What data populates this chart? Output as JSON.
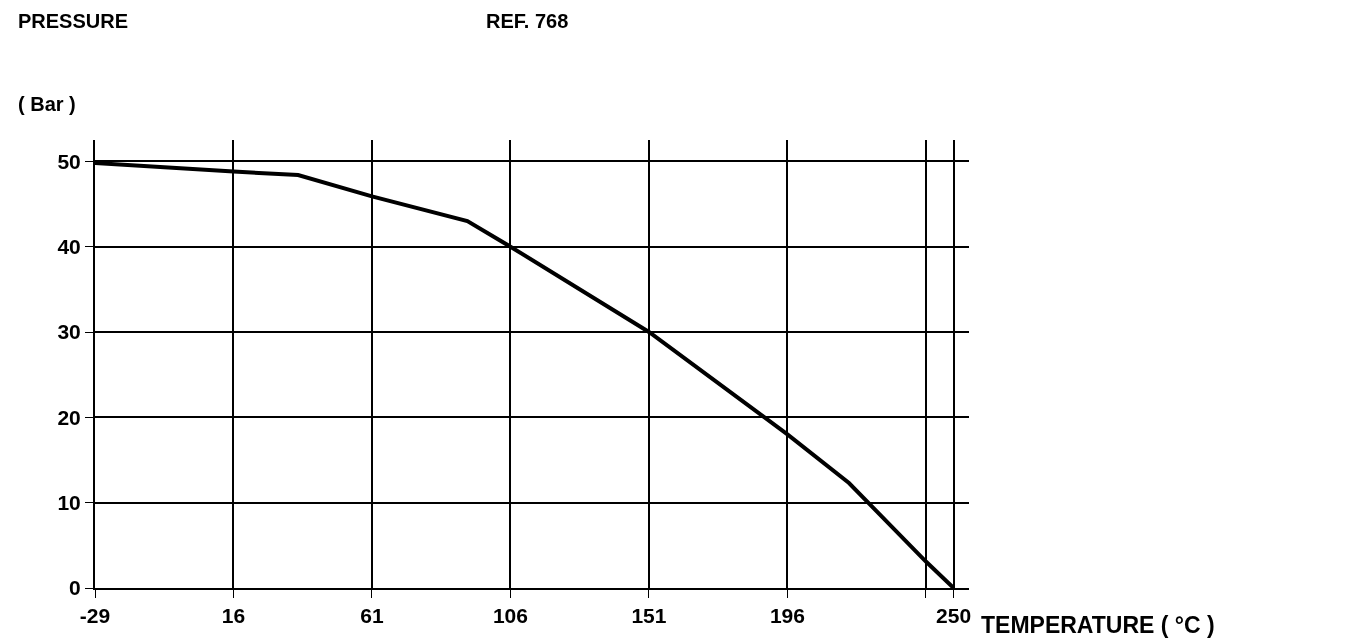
{
  "chart_data": {
    "type": "line",
    "title": "PRESSURE",
    "subtitle": "REF. 768",
    "xlabel": "TEMPERATURE ( °C )",
    "ylabel": "( Bar )",
    "x": [
      -29,
      16,
      37,
      61,
      92,
      106,
      151,
      196,
      216,
      241,
      250
    ],
    "series": [
      {
        "color": "#000000",
        "values": [
          49.8,
          48.8,
          48.4,
          45.9,
          43.0,
          40,
          30,
          18,
          12.3,
          3.1,
          0
        ]
      }
    ],
    "xlim": [
      -29,
      255
    ],
    "ylim": [
      0,
      52.5
    ],
    "xticks": [
      -29,
      16,
      61,
      106,
      151,
      196,
      {
        "value": 241,
        "label": null
      },
      250
    ],
    "yticks": [
      0,
      10,
      20,
      30,
      40,
      50
    ],
    "grid": true,
    "marker": "none",
    "line_style": "solid"
  }
}
